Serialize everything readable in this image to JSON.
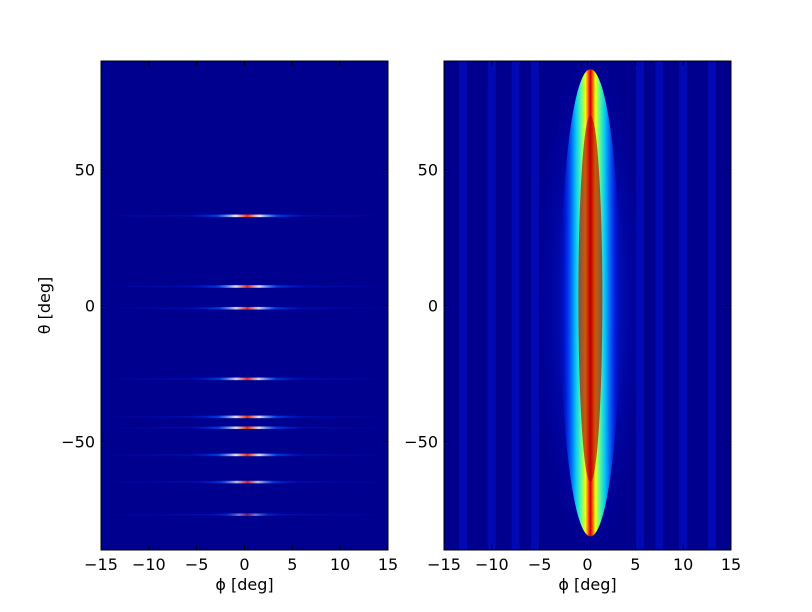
{
  "chart_data": [
    {
      "type": "heatmap",
      "title": "",
      "xlabel": "ϕ [deg]",
      "ylabel": "θ [deg]",
      "xlim": [
        -15,
        15
      ],
      "ylim": [
        -90,
        90
      ],
      "xticks": [
        -15,
        -10,
        -5,
        0,
        5,
        10,
        15
      ],
      "xtick_labels": [
        "−15",
        "−10",
        "−5",
        "0",
        "5",
        "10",
        "15"
      ],
      "yticks": [
        50,
        0,
        -50
      ],
      "ytick_labels": [
        "50",
        "0",
        "−50"
      ],
      "colormap": "jet",
      "background_color": "#00008f",
      "grid": false,
      "features": [
        {
          "theta": 33,
          "intensity": 0.95
        },
        {
          "theta": 7,
          "intensity": 0.9
        },
        {
          "theta": -1,
          "intensity": 0.85
        },
        {
          "theta": -27,
          "intensity": 0.85
        },
        {
          "theta": -41,
          "intensity": 0.9
        },
        {
          "theta": -45,
          "intensity": 0.88
        },
        {
          "theta": -55,
          "intensity": 0.9
        },
        {
          "theta": -65,
          "intensity": 0.75
        },
        {
          "theta": -77,
          "intensity": 0.45
        }
      ]
    },
    {
      "type": "heatmap",
      "title": "",
      "xlabel": "ϕ [deg]",
      "ylabel": "",
      "xlim": [
        -15,
        15
      ],
      "ylim": [
        -90,
        90
      ],
      "xticks": [
        -15,
        -10,
        -5,
        0,
        5,
        10,
        15
      ],
      "xtick_labels": [
        "−15",
        "−10",
        "−5",
        "0",
        "5",
        "10",
        "15"
      ],
      "yticks": [
        50,
        0,
        -50
      ],
      "ytick_labels": [
        "50",
        "0",
        "−50"
      ],
      "colormap": "jet",
      "background_color": "#00008f",
      "grid": false,
      "features": [
        {
          "phi_center": 0.3,
          "theta_range": [
            -85,
            87
          ],
          "peak_theta_range": [
            -65,
            70
          ],
          "intensity": 1.0
        }
      ]
    }
  ]
}
